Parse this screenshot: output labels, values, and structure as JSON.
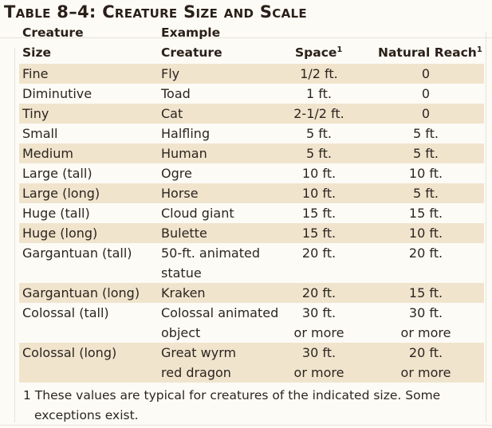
{
  "table": {
    "title": "Table 8–4: Creature Size and Scale",
    "headers": {
      "col1_line1": "Creature",
      "col1_line2": "Size",
      "col2_line1": "Example",
      "col2_line2": "Creature",
      "col3": "Space",
      "col4": "Natural Reach",
      "footnote_marker": "1"
    },
    "rows": [
      {
        "size": "Fine",
        "example": "Fly",
        "space": "1/2 ft.",
        "reach": "0",
        "shaded": true
      },
      {
        "size": "Diminutive",
        "example": "Toad",
        "space": "1 ft.",
        "reach": "0",
        "shaded": false
      },
      {
        "size": "Tiny",
        "example": "Cat",
        "space": "2-1/2 ft.",
        "reach": "0",
        "shaded": true
      },
      {
        "size": "Small",
        "example": "Halfling",
        "space": "5 ft.",
        "reach": "5 ft.",
        "shaded": false
      },
      {
        "size": "Medium",
        "example": "Human",
        "space": "5 ft.",
        "reach": "5 ft.",
        "shaded": true
      },
      {
        "size": "Large (tall)",
        "example": "Ogre",
        "space": "10 ft.",
        "reach": "10 ft.",
        "shaded": false
      },
      {
        "size": "Large (long)",
        "example": "Horse",
        "space": "10 ft.",
        "reach": "5 ft.",
        "shaded": true
      },
      {
        "size": "Huge (tall)",
        "example": "Cloud giant",
        "space": "15 ft.",
        "reach": "15 ft.",
        "shaded": false
      },
      {
        "size": "Huge (long)",
        "example": "Bulette",
        "space": "15 ft.",
        "reach": "10 ft.",
        "shaded": true
      },
      {
        "size": "Gargantuan (tall)",
        "example": "50-ft. animated",
        "example_line2": "statue",
        "space": "20 ft.",
        "reach": "20 ft.",
        "shaded": false
      },
      {
        "size": "Gargantuan (long)",
        "example": "Kraken",
        "space": "20 ft.",
        "reach": "15 ft.",
        "shaded": true
      },
      {
        "size": "Colossal (tall)",
        "example": "Colossal animated",
        "example_line2": "object",
        "space": "30 ft.",
        "space_line2": "or more",
        "reach": "30 ft.",
        "reach_line2": "or more",
        "shaded": false
      },
      {
        "size": "Colossal (long)",
        "example": "Great wyrm",
        "example_line2": "red dragon",
        "space": "30 ft.",
        "space_line2": "or more",
        "reach": "20 ft.",
        "reach_line2": "or more",
        "shaded": true
      }
    ],
    "footnote_line1": "1 These values are typical for creatures of the indicated size. Some",
    "footnote_line2": "exceptions exist."
  },
  "colors": {
    "shade": "#f1e4cd",
    "background": "#fdfbf6",
    "text": "#2b2520"
  }
}
